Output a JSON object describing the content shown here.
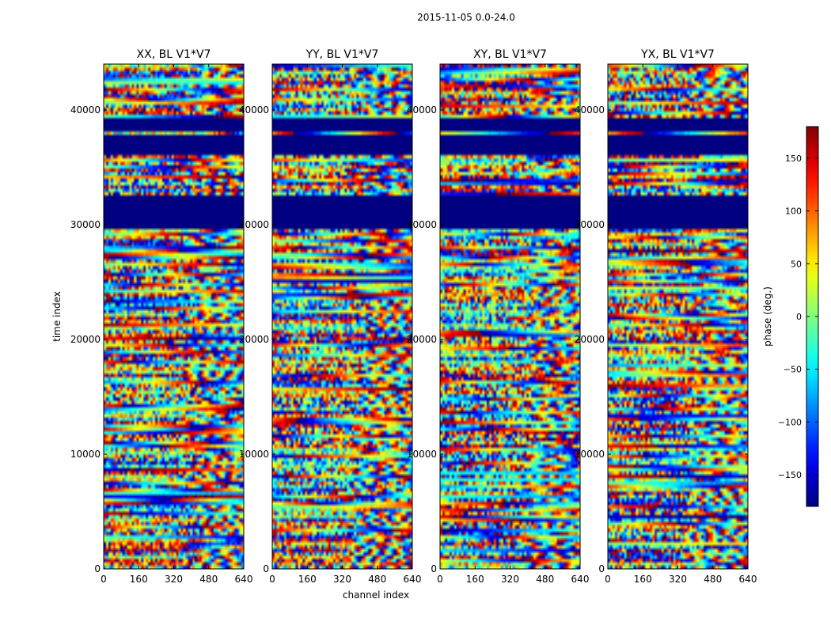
{
  "chart_data": {
    "type": "heatmap",
    "suptitle": "2015-11-05 0.0-24.0",
    "xlabel": "channel index",
    "ylabel": "time index",
    "xlim": [
      0,
      640
    ],
    "ylim": [
      0,
      44000
    ],
    "xticks": [
      0,
      160,
      320,
      480,
      640
    ],
    "yticks": [
      0,
      10000,
      20000,
      30000,
      40000
    ],
    "xtick_labels": [
      "0",
      "160",
      "320",
      "480",
      "640"
    ],
    "ytick_labels": [
      "0",
      "10000",
      "20000",
      "30000",
      "40000"
    ],
    "panels": [
      {
        "title": "XX, BL V1*V7",
        "seed": 11
      },
      {
        "title": "YY, BL V1*V7",
        "seed": 23
      },
      {
        "title": "XY, BL V1*V7",
        "seed": 37
      },
      {
        "title": "YX, BL V1*V7",
        "seed": 53
      }
    ],
    "flagged_time_ranges": [
      [
        29500,
        32700
      ],
      [
        36200,
        37900
      ],
      [
        38200,
        39300
      ]
    ],
    "colorbar": {
      "label": "phase (deg.)",
      "range": [
        -180,
        180
      ],
      "ticks": [
        150,
        100,
        50,
        0,
        -50,
        -100,
        -150
      ],
      "tick_labels": [
        "150",
        "100",
        "50",
        "0",
        "−50",
        "−100",
        "−150"
      ],
      "colormap": "jet"
    }
  }
}
